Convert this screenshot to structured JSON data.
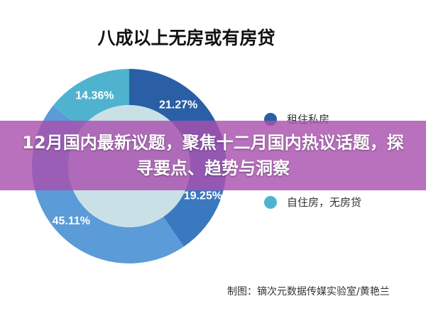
{
  "chart_data": {
    "type": "pie",
    "title": "八成以上无房或有房贷",
    "donut": true,
    "slices": [
      {
        "label": "21.27%",
        "value": 21.27,
        "color": "#2b5fa5",
        "legend": "租住私房"
      },
      {
        "label": "19.25%",
        "value": 19.25,
        "color": "#3a78bf",
        "legend": ""
      },
      {
        "label": "45.11%",
        "value": 45.11,
        "color": "#5b9bd8",
        "legend": ""
      },
      {
        "label": "14.36%",
        "value": 14.36,
        "color": "#4fb3cf",
        "legend": "自住房，无房贷"
      }
    ],
    "inner_color": "#c9e1e6",
    "legend_placement": "right"
  },
  "source": "制图：镝次元数据传媒实验室/黄艳兰",
  "banner": {
    "text": "12月国内最新议题，聚焦十二月国内热议话题，探寻要点、趋势与洞察"
  }
}
